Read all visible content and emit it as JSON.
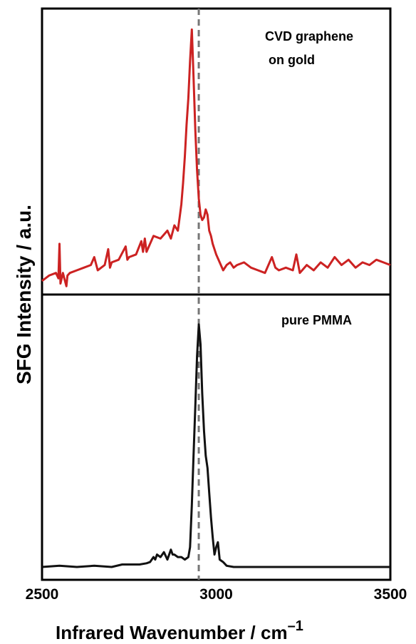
{
  "chart_data": [
    {
      "type": "line",
      "panel": "top",
      "annotation": [
        "CVD graphene",
        "on gold"
      ],
      "xlim": [
        2500,
        3500
      ],
      "series": [
        {
          "color": "#cc2222",
          "x": [
            2500,
            2520,
            2540,
            2547,
            2550,
            2553,
            2560,
            2570,
            2573,
            2580,
            2600,
            2620,
            2640,
            2650,
            2660,
            2680,
            2690,
            2695,
            2700,
            2720,
            2740,
            2745,
            2750,
            2770,
            2785,
            2790,
            2795,
            2800,
            2820,
            2840,
            2860,
            2870,
            2880,
            2890,
            2895,
            2900,
            2905,
            2910,
            2915,
            2920,
            2925,
            2930,
            2935,
            2940,
            2945,
            2950,
            2955,
            2960,
            2965,
            2970,
            2975,
            2980,
            2985,
            2990,
            3000,
            3010,
            3020,
            3030,
            3040,
            3050,
            3060,
            3080,
            3100,
            3120,
            3140,
            3160,
            3170,
            3180,
            3200,
            3220,
            3230,
            3240,
            3260,
            3280,
            3300,
            3320,
            3340,
            3360,
            3380,
            3400,
            3420,
            3440,
            3460,
            3480,
            3500
          ],
          "y": [
            0.03,
            0.05,
            0.06,
            0.04,
            0.17,
            0.02,
            0.06,
            0.01,
            0.05,
            0.06,
            0.07,
            0.08,
            0.09,
            0.12,
            0.07,
            0.09,
            0.15,
            0.08,
            0.1,
            0.11,
            0.16,
            0.11,
            0.12,
            0.13,
            0.18,
            0.14,
            0.19,
            0.14,
            0.2,
            0.19,
            0.22,
            0.19,
            0.24,
            0.22,
            0.27,
            0.32,
            0.4,
            0.5,
            0.62,
            0.72,
            0.86,
            0.98,
            0.8,
            0.6,
            0.45,
            0.34,
            0.28,
            0.26,
            0.27,
            0.3,
            0.28,
            0.22,
            0.2,
            0.17,
            0.13,
            0.1,
            0.07,
            0.09,
            0.1,
            0.08,
            0.09,
            0.1,
            0.08,
            0.07,
            0.06,
            0.12,
            0.08,
            0.07,
            0.08,
            0.07,
            0.13,
            0.06,
            0.09,
            0.07,
            0.1,
            0.08,
            0.12,
            0.09,
            0.11,
            0.08,
            0.1,
            0.09,
            0.11,
            0.1,
            0.09
          ]
        }
      ]
    },
    {
      "type": "line",
      "panel": "bottom",
      "annotation": [
        "pure PMMA"
      ],
      "xlim": [
        2500,
        3500
      ],
      "series": [
        {
          "color": "#111111",
          "x": [
            2500,
            2550,
            2600,
            2650,
            2700,
            2730,
            2760,
            2780,
            2800,
            2810,
            2820,
            2825,
            2830,
            2840,
            2850,
            2860,
            2870,
            2875,
            2880,
            2890,
            2900,
            2910,
            2920,
            2925,
            2930,
            2935,
            2940,
            2945,
            2950,
            2955,
            2960,
            2965,
            2970,
            2975,
            2980,
            2985,
            2990,
            2995,
            3000,
            3005,
            3010,
            3020,
            3030,
            3050,
            3100,
            3150,
            3200,
            3300,
            3400,
            3500
          ],
          "y": [
            0.0,
            0.005,
            0.0,
            0.005,
            0.0,
            0.01,
            0.01,
            0.01,
            0.015,
            0.02,
            0.04,
            0.03,
            0.05,
            0.04,
            0.06,
            0.03,
            0.07,
            0.05,
            0.05,
            0.04,
            0.04,
            0.03,
            0.04,
            0.08,
            0.25,
            0.45,
            0.65,
            0.85,
            0.98,
            0.9,
            0.7,
            0.55,
            0.45,
            0.4,
            0.3,
            0.2,
            0.12,
            0.05,
            0.08,
            0.1,
            0.03,
            0.02,
            0.005,
            0.0,
            0.0,
            0.0,
            0.0,
            0.0,
            0.0,
            0.0
          ]
        }
      ]
    }
  ],
  "axes": {
    "xlabel": "Infrared Wavenumber / cm",
    "xlabel_sup": "–1",
    "ylabel": "SFG Intensity / a.u.",
    "ticks": [
      {
        "value": 2500,
        "label": "2500"
      },
      {
        "value": 3000,
        "label": "3000"
      },
      {
        "value": 3500,
        "label": "3500"
      }
    ],
    "reference_line_x": 2950
  }
}
